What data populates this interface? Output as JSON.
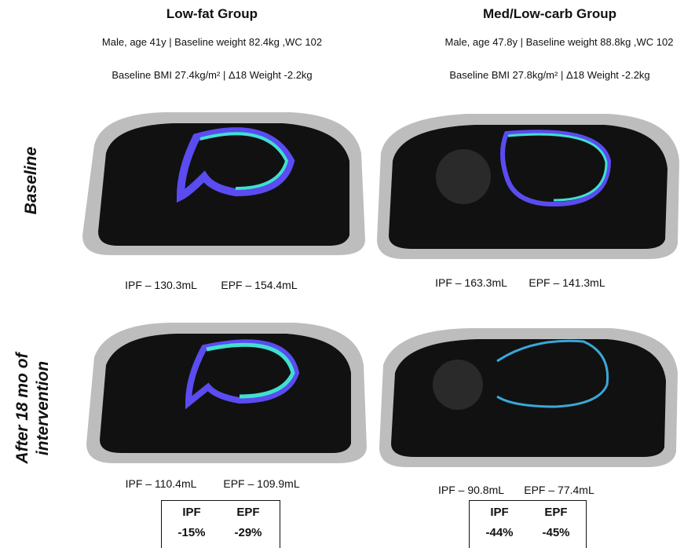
{
  "row_labels": [
    "Baseline",
    "After 18 mo of",
    "intervention"
  ],
  "columns": [
    {
      "title": "Low-fat Group",
      "info": "Male, age 41y | Baseline weight 82.4kg ,WC 102",
      "bmi": "Baseline BMI 27.4kg/m² | Δ18 Weight -2.2kg",
      "baseline": [
        "IPF – 130.3mL",
        "EPF – 154.4mL"
      ],
      "after": [
        "IPF – 110.4mL",
        "EPF – 109.9mL"
      ],
      "change": {
        "headers": [
          "IPF",
          "EPF"
        ],
        "values": [
          "-15%",
          "-29%"
        ]
      }
    },
    {
      "title": "Med/Low-carb Group",
      "info": "Male, age 47.8y | Baseline weight 88.8kg ,WC 102",
      "bmi": "Baseline BMI 27.8kg/m² | Δ18 Weight -2.2kg",
      "baseline": [
        "IPF – 163.3mL",
        "EPF – 141.3mL"
      ],
      "after": [
        "IPF – 90.8mL",
        "EPF – 77.4mL"
      ],
      "change": {
        "headers": [
          "IPF",
          "EPF"
        ],
        "values": [
          "-44%",
          "-45%"
        ]
      }
    }
  ]
}
